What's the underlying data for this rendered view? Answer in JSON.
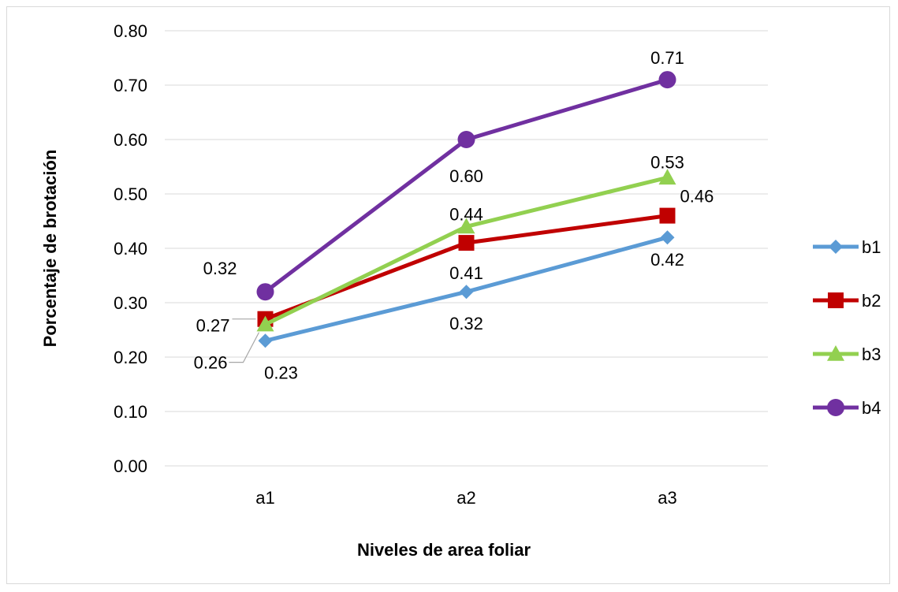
{
  "chart_data": {
    "type": "line",
    "title": "",
    "xlabel": "Niveles de area foliar",
    "ylabel": "Porcentaje de brotación",
    "categories": [
      "a1",
      "a2",
      "a3"
    ],
    "ylim": [
      0,
      0.8
    ],
    "y_ticks": [
      "0.00",
      "0.10",
      "0.20",
      "0.30",
      "0.40",
      "0.50",
      "0.60",
      "0.70",
      "0.80"
    ],
    "grid": true,
    "legend_position": "right",
    "series": [
      {
        "name": "b1",
        "values": [
          0.23,
          0.32,
          0.42
        ],
        "labels": [
          "0.23",
          "0.32",
          "0.42"
        ],
        "color": "#5b9bd5",
        "marker": "diamond"
      },
      {
        "name": "b2",
        "values": [
          0.27,
          0.41,
          0.46
        ],
        "labels": [
          "0.27",
          "0.41",
          "0.46"
        ],
        "color": "#c00000",
        "marker": "square"
      },
      {
        "name": "b3",
        "values": [
          0.26,
          0.44,
          0.53
        ],
        "labels": [
          "0.26",
          "0.44",
          "0.53"
        ],
        "color": "#92d050",
        "marker": "triangle"
      },
      {
        "name": "b4",
        "values": [
          0.32,
          0.6,
          0.71
        ],
        "labels": [
          "0.32",
          "0.60",
          "0.71"
        ],
        "color": "#7030a0",
        "marker": "circle"
      }
    ]
  }
}
